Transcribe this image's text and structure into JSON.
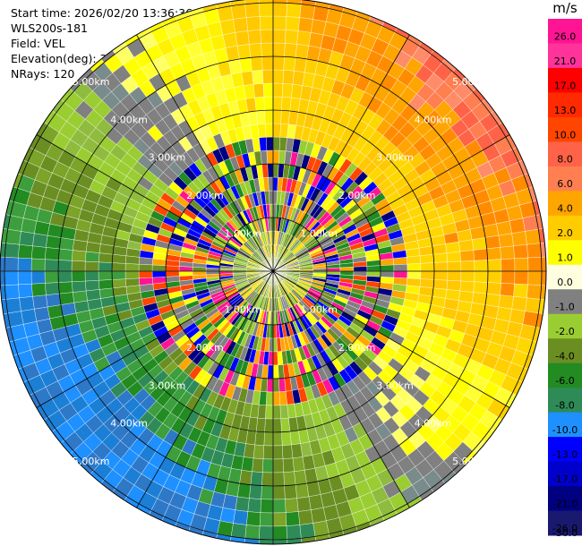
{
  "header": {
    "start_time": "Start time: 2026/02/20 13:36:36",
    "site": "WLS200s-181",
    "field": "Field: VEL",
    "elevation": "Elevation(deg): 35.00",
    "nrays": "NRays: 120"
  },
  "chart_data": {
    "type": "heatmap",
    "subtype": "radar-ppi",
    "field": "VEL",
    "unit": "m/s",
    "nrays": 120,
    "elevation_deg": 35.0,
    "range_rings_km": [
      "1.00km",
      "2.00km",
      "3.00km",
      "4.00km",
      "5.00km"
    ],
    "max_range_km": 5.6,
    "colorbar": {
      "unit": "m/s",
      "labels": [
        "26.0",
        "21.0",
        "17.0",
        "13.0",
        "10.0",
        "8.0",
        "6.0",
        "4.0",
        "2.0",
        "1.0",
        "0.0",
        "-1.0",
        "-2.0",
        "-4.0",
        "-6.0",
        "-8.0",
        "-10.0",
        "-13.0",
        "-17.0",
        "-21.0",
        "-26.0",
        "-30.0"
      ],
      "colors": [
        "#ff1493",
        "#ff3399",
        "#ff0000",
        "#ff2a00",
        "#ff4500",
        "#ff6347",
        "#ff7f50",
        "#ffa500",
        "#ffcc00",
        "#ffff00",
        "#ffffe0",
        "#808080",
        "#9acd32",
        "#6b8e23",
        "#228b22",
        "#2e8b57",
        "#1e90ff",
        "#0000ff",
        "#0000cd",
        "#000080",
        "#191970"
      ]
    },
    "regions": [
      {
        "from_km": 0.0,
        "to_km": 0.6,
        "description": "noisy center",
        "mix": [
          "#9acd32",
          "#ffd700",
          "#808080",
          "#6b8e23"
        ]
      },
      {
        "from_km": 0.6,
        "to_km": 2.5,
        "description": "noisy",
        "mix": [
          "#ff1493",
          "#0000ff",
          "#000080",
          "#ffff00",
          "#9acd32",
          "#ff4500",
          "#808080",
          "#ffa500",
          "#6b8e23",
          "#228b22"
        ]
      },
      {
        "from_km": 2.5,
        "to_km": 5.6,
        "description": "coherent wind",
        "sector_colors": "radial-wind"
      }
    ],
    "grid": true
  }
}
